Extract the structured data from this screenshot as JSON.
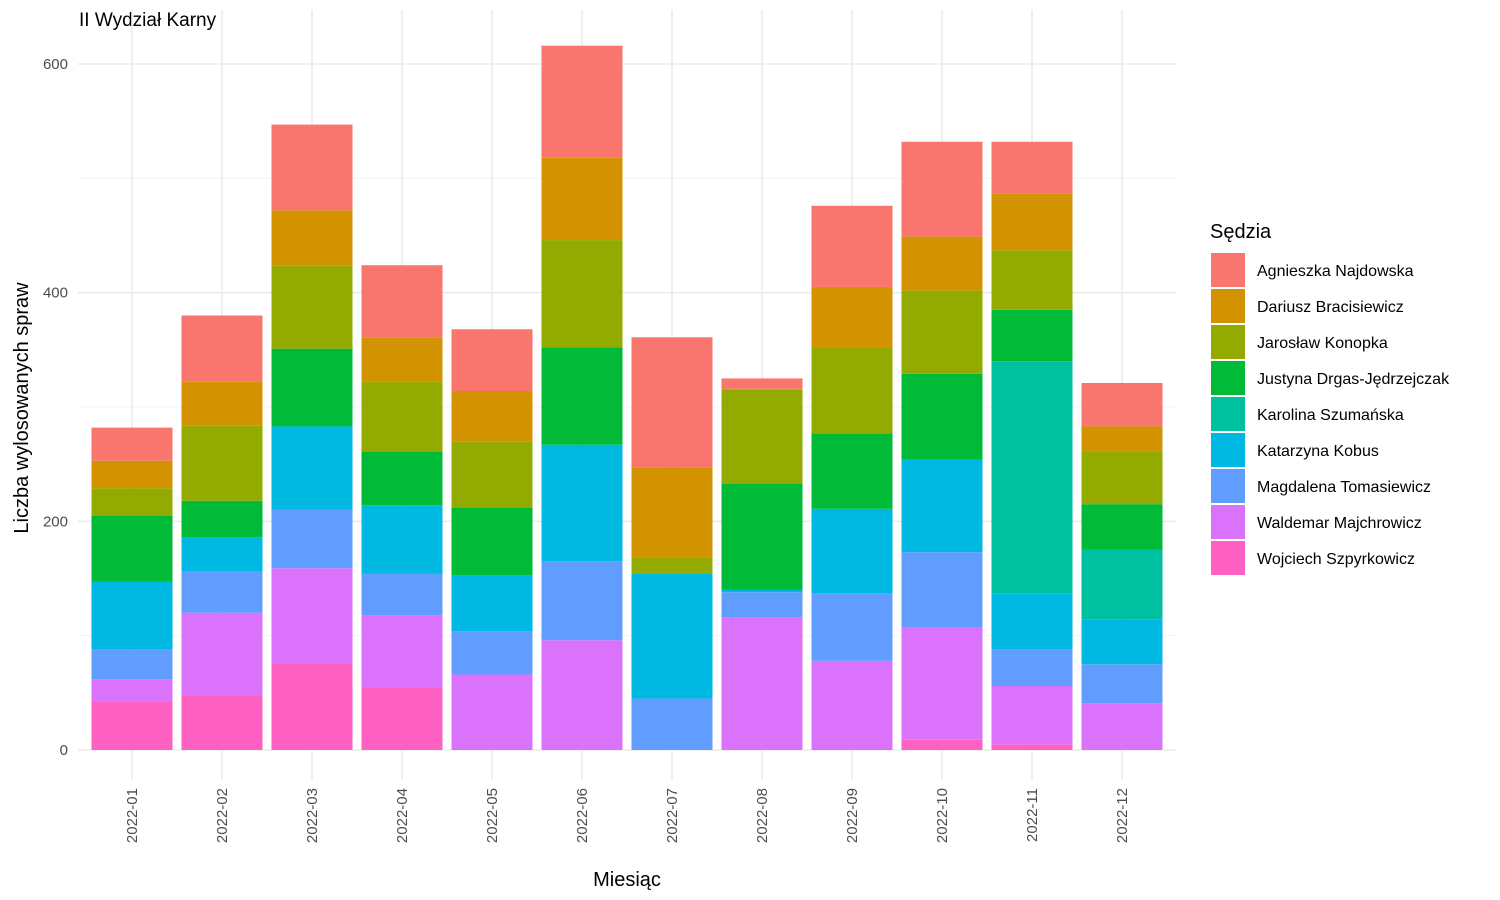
{
  "chart_data": {
    "type": "bar",
    "stacked": true,
    "title": "II Wydział Karny",
    "xlabel": "Miesiąc",
    "ylabel": "Liczba wylosowanych spraw",
    "ylim": [
      0,
      640
    ],
    "yticks": [
      0,
      200,
      400,
      600
    ],
    "grid": true,
    "legend_title": "Sędzia",
    "legend_position": "right",
    "categories": [
      "2022-01",
      "2022-02",
      "2022-03",
      "2022-04",
      "2022-05",
      "2022-06",
      "2022-07",
      "2022-08",
      "2022-09",
      "2022-10",
      "2022-11",
      "2022-12"
    ],
    "series": [
      {
        "name": "Agnieszka Najdowska",
        "color": "#F8766D",
        "values": [
          29,
          58,
          75,
          63,
          54,
          98,
          114,
          9,
          71,
          83,
          45,
          38
        ]
      },
      {
        "name": "Dariusz Bracisiewicz",
        "color": "#D39200",
        "values": [
          24,
          38,
          48,
          39,
          44,
          72,
          79,
          1,
          53,
          47,
          50,
          22
        ]
      },
      {
        "name": "Jarosław Konopka",
        "color": "#93AA00",
        "values": [
          24,
          66,
          73,
          61,
          58,
          94,
          14,
          82,
          75,
          73,
          52,
          46
        ]
      },
      {
        "name": "Justyna Drgas-Jędrzejczak",
        "color": "#00BA38",
        "values": [
          58,
          32,
          68,
          47,
          59,
          85,
          0,
          93,
          66,
          75,
          45,
          40
        ]
      },
      {
        "name": "Karolina Szumańska",
        "color": "#00C19F",
        "values": [
          0,
          0,
          0,
          0,
          0,
          0,
          0,
          0,
          0,
          0,
          203,
          61
        ]
      },
      {
        "name": "Katarzyna Kobus",
        "color": "#00B9E3",
        "values": [
          59,
          30,
          73,
          60,
          49,
          102,
          109,
          2,
          74,
          81,
          49,
          39
        ]
      },
      {
        "name": "Magdalena Tomasiewicz",
        "color": "#619CFF",
        "values": [
          26,
          36,
          51,
          36,
          38,
          69,
          45,
          22,
          59,
          66,
          32,
          34
        ]
      },
      {
        "name": "Waldemar Majchrowicz",
        "color": "#DB72FB",
        "values": [
          20,
          72,
          83,
          63,
          66,
          96,
          0,
          116,
          78,
          98,
          51,
          41
        ]
      },
      {
        "name": "Wojciech Szpyrkowicz",
        "color": "#FF61C3",
        "values": [
          42,
          48,
          76,
          55,
          0,
          0,
          0,
          0,
          0,
          9,
          5,
          0
        ]
      }
    ]
  }
}
